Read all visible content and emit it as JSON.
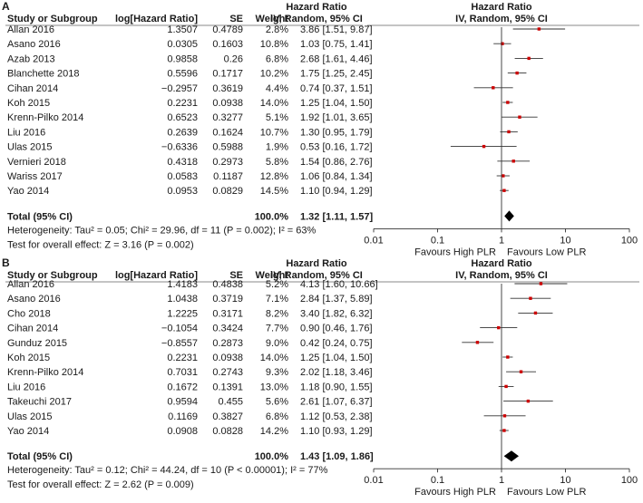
{
  "chart_data": [
    {
      "type": "forest",
      "panel_label": "A",
      "headers": {
        "study": "Study or Subgroup",
        "logHR": "log[Hazard Ratio]",
        "se": "SE",
        "weight": "Weight",
        "hr_top": "Hazard Ratio",
        "hr_bottom": "IV, Random, 95% CI",
        "plot_top": "Hazard Ratio",
        "plot_bottom": "IV, Random, 95% CI"
      },
      "studies": [
        {
          "name": "Allan 2016",
          "logHR": "1.3507",
          "se": "0.4789",
          "weight": "2.8%",
          "ci_text": "3.86 [1.51, 9.87]",
          "hr": 3.86,
          "lo": 1.51,
          "hi": 9.87
        },
        {
          "name": "Asano 2016",
          "logHR": "0.0305",
          "se": "0.1603",
          "weight": "10.8%",
          "ci_text": "1.03 [0.75, 1.41]",
          "hr": 1.03,
          "lo": 0.75,
          "hi": 1.41
        },
        {
          "name": "Azab 2013",
          "logHR": "0.9858",
          "se": "0.26",
          "weight": "6.8%",
          "ci_text": "2.68 [1.61, 4.46]",
          "hr": 2.68,
          "lo": 1.61,
          "hi": 4.46
        },
        {
          "name": "Blanchette 2018",
          "logHR": "0.5596",
          "se": "0.1717",
          "weight": "10.2%",
          "ci_text": "1.75 [1.25, 2.45]",
          "hr": 1.75,
          "lo": 1.25,
          "hi": 2.45
        },
        {
          "name": "Cihan 2014",
          "logHR": "−0.2957",
          "se": "0.3619",
          "weight": "4.4%",
          "ci_text": "0.74 [0.37, 1.51]",
          "hr": 0.74,
          "lo": 0.37,
          "hi": 1.51
        },
        {
          "name": "Koh 2015",
          "logHR": "0.2231",
          "se": "0.0938",
          "weight": "14.0%",
          "ci_text": "1.25 [1.04, 1.50]",
          "hr": 1.25,
          "lo": 1.04,
          "hi": 1.5
        },
        {
          "name": "Krenn-Pilko 2014",
          "logHR": "0.6523",
          "se": "0.3277",
          "weight": "5.1%",
          "ci_text": "1.92 [1.01, 3.65]",
          "hr": 1.92,
          "lo": 1.01,
          "hi": 3.65
        },
        {
          "name": "Liu 2016",
          "logHR": "0.2639",
          "se": "0.1624",
          "weight": "10.7%",
          "ci_text": "1.30 [0.95, 1.79]",
          "hr": 1.3,
          "lo": 0.95,
          "hi": 1.79
        },
        {
          "name": "Ulas 2015",
          "logHR": "−0.6336",
          "se": "0.5988",
          "weight": "1.9%",
          "ci_text": "0.53 [0.16, 1.72]",
          "hr": 0.53,
          "lo": 0.16,
          "hi": 1.72
        },
        {
          "name": "Vernieri 2018",
          "logHR": "0.4318",
          "se": "0.2973",
          "weight": "5.8%",
          "ci_text": "1.54 [0.86, 2.76]",
          "hr": 1.54,
          "lo": 0.86,
          "hi": 2.76
        },
        {
          "name": "Wariss 2017",
          "logHR": "0.0583",
          "se": "0.1187",
          "weight": "12.8%",
          "ci_text": "1.06 [0.84, 1.34]",
          "hr": 1.06,
          "lo": 0.84,
          "hi": 1.34
        },
        {
          "name": "Yao 2014",
          "logHR": "0.0953",
          "se": "0.0829",
          "weight": "14.5%",
          "ci_text": "1.10 [0.94, 1.29]",
          "hr": 1.1,
          "lo": 0.94,
          "hi": 1.29
        }
      ],
      "total": {
        "label": "Total (95% CI)",
        "weight": "100.0%",
        "ci_text": "1.32 [1.11, 1.57]",
        "hr": 1.32,
        "lo": 1.11,
        "hi": 1.57
      },
      "heterogeneity": "Heterogeneity: Tau² = 0.05; Chi² = 29.96, df = 11 (P = 0.002); I² = 63%",
      "overall_effect": "Test for overall effect: Z = 3.16 (P = 0.002)",
      "x_axis": {
        "scale": "log",
        "ticks": [
          0.01,
          0.1,
          1,
          10,
          100
        ],
        "tick_labels": [
          "0.01",
          "0.1",
          "1",
          "10",
          "100"
        ],
        "xlim": [
          0.01,
          100
        ]
      },
      "favours_left": "Favours High PLR",
      "favours_right": "Favours Low PLR"
    },
    {
      "type": "forest",
      "panel_label": "B",
      "headers": {
        "study": "Study or Subgroup",
        "logHR": "log[Hazard Ratio]",
        "se": "SE",
        "weight": "Weight",
        "hr_top": "Hazard Ratio",
        "hr_bottom": "IV, Random, 95% CI",
        "plot_top": "Hazard Ratio",
        "plot_bottom": "IV, Random, 95% CI"
      },
      "studies": [
        {
          "name": "Allan 2016",
          "logHR": "1.4183",
          "se": "0.4838",
          "weight": "5.2%",
          "ci_text": "4.13 [1.60, 10.66]",
          "hr": 4.13,
          "lo": 1.6,
          "hi": 10.66
        },
        {
          "name": "Asano 2016",
          "logHR": "1.0438",
          "se": "0.3719",
          "weight": "7.1%",
          "ci_text": "2.84 [1.37, 5.89]",
          "hr": 2.84,
          "lo": 1.37,
          "hi": 5.89
        },
        {
          "name": "Cho 2018",
          "logHR": "1.2225",
          "se": "0.3171",
          "weight": "8.2%",
          "ci_text": "3.40 [1.82, 6.32]",
          "hr": 3.4,
          "lo": 1.82,
          "hi": 6.32
        },
        {
          "name": "Cihan 2014",
          "logHR": "−0.1054",
          "se": "0.3424",
          "weight": "7.7%",
          "ci_text": "0.90 [0.46, 1.76]",
          "hr": 0.9,
          "lo": 0.46,
          "hi": 1.76
        },
        {
          "name": "Gunduz 2015",
          "logHR": "−0.8557",
          "se": "0.2873",
          "weight": "9.0%",
          "ci_text": "0.42 [0.24, 0.75]",
          "hr": 0.42,
          "lo": 0.24,
          "hi": 0.75
        },
        {
          "name": "Koh 2015",
          "logHR": "0.2231",
          "se": "0.0938",
          "weight": "14.0%",
          "ci_text": "1.25 [1.04, 1.50]",
          "hr": 1.25,
          "lo": 1.04,
          "hi": 1.5
        },
        {
          "name": "Krenn-Pilko 2014",
          "logHR": "0.7031",
          "se": "0.2743",
          "weight": "9.3%",
          "ci_text": "2.02 [1.18, 3.46]",
          "hr": 2.02,
          "lo": 1.18,
          "hi": 3.46
        },
        {
          "name": "Liu 2016",
          "logHR": "0.1672",
          "se": "0.1391",
          "weight": "13.0%",
          "ci_text": "1.18 [0.90, 1.55]",
          "hr": 1.18,
          "lo": 0.9,
          "hi": 1.55
        },
        {
          "name": "Takeuchi 2017",
          "logHR": "0.9594",
          "se": "0.455",
          "weight": "5.6%",
          "ci_text": "2.61 [1.07, 6.37]",
          "hr": 2.61,
          "lo": 1.07,
          "hi": 6.37
        },
        {
          "name": "Ulas 2015",
          "logHR": "0.1169",
          "se": "0.3827",
          "weight": "6.8%",
          "ci_text": "1.12 [0.53, 2.38]",
          "hr": 1.12,
          "lo": 0.53,
          "hi": 2.38
        },
        {
          "name": "Yao 2014",
          "logHR": "0.0908",
          "se": "0.0828",
          "weight": "14.2%",
          "ci_text": "1.10 [0.93, 1.29]",
          "hr": 1.1,
          "lo": 0.93,
          "hi": 1.29
        }
      ],
      "total": {
        "label": "Total (95% CI)",
        "weight": "100.0%",
        "ci_text": "1.43 [1.09, 1.86]",
        "hr": 1.43,
        "lo": 1.09,
        "hi": 1.86
      },
      "heterogeneity": "Heterogeneity: Tau² = 0.12; Chi² = 44.24, df = 10 (P < 0.00001); I² = 77%",
      "overall_effect": "Test for overall effect: Z = 2.62 (P = 0.009)",
      "x_axis": {
        "scale": "log",
        "ticks": [
          0.01,
          0.1,
          1,
          10,
          100
        ],
        "tick_labels": [
          "0.01",
          "0.1",
          "1",
          "10",
          "100"
        ],
        "xlim": [
          0.01,
          100
        ]
      },
      "favours_left": "Favours High PLR",
      "favours_right": "Favours Low PLR"
    }
  ],
  "colors": {
    "marker": "#cc0000",
    "line": "#333333",
    "text": "#1a1a1a",
    "diamond": "#000000",
    "header_rule": "#888888"
  }
}
